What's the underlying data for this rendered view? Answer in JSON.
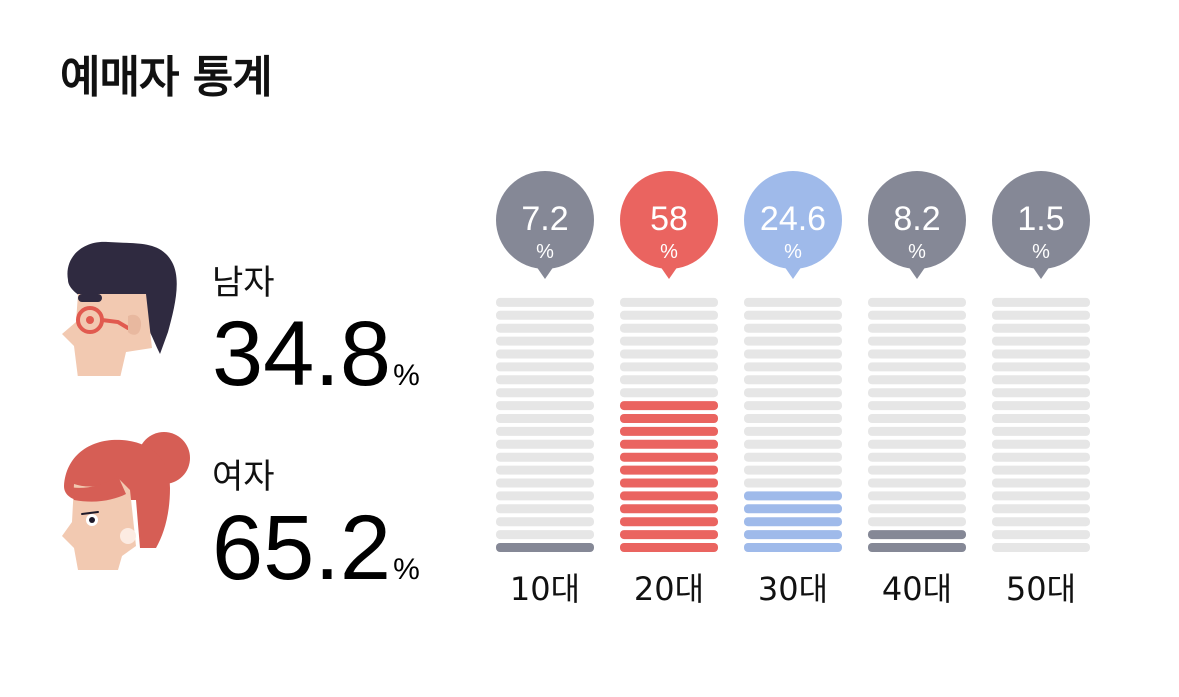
{
  "title": "예매자 통계",
  "gender": [
    {
      "label": "남자",
      "value": "34.8",
      "unit": "%"
    },
    {
      "label": "여자",
      "value": "65.2",
      "unit": "%"
    }
  ],
  "chart_data": {
    "type": "bar",
    "title": "",
    "categories": [
      "10대",
      "20대",
      "30대",
      "40대",
      "50대"
    ],
    "values": [
      7.2,
      58,
      24.6,
      8.2,
      1.5
    ],
    "value_labels": [
      "7.2",
      "58",
      "24.6",
      "8.2",
      "1.5"
    ],
    "unit": "%",
    "xlabel": "",
    "ylabel": "",
    "ylim": [
      0,
      100
    ],
    "grid": false,
    "legend": "none",
    "colors": [
      "#858896",
      "#EA6460",
      "#9FBAEA",
      "#858896",
      "#858896"
    ],
    "empty_color": "#E6E6E6"
  },
  "colors": {
    "male_hair": "#2F2A40",
    "female_hair": "#D65E55",
    "skin": "#F2C9B1",
    "glasses": "#E15A4F"
  }
}
